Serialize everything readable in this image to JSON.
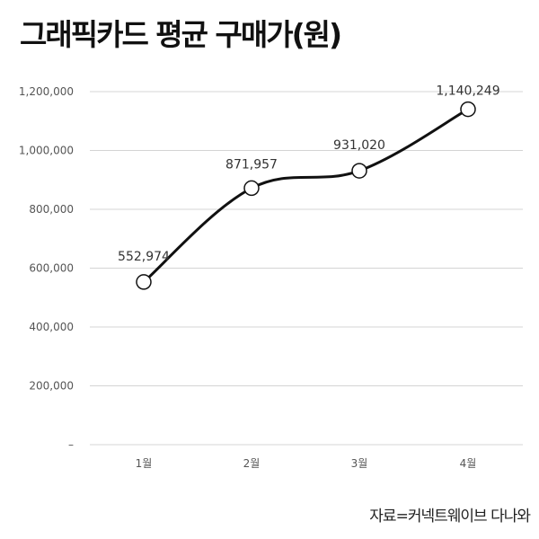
{
  "chart_data": {
    "type": "line",
    "title": "그래픽카드 평균 구매가(원)",
    "categories": [
      "1월",
      "2월",
      "3월",
      "4월"
    ],
    "series": [
      {
        "values": [
          552974,
          871957,
          931020,
          1140249
        ],
        "labels": [
          "552,974",
          "871,957",
          "931,020",
          "1,140,249"
        ]
      }
    ],
    "y_ticks": [
      0,
      200000,
      400000,
      600000,
      800000,
      1000000,
      1200000
    ],
    "y_tick_labels": [
      "–",
      "200,000",
      "400,000",
      "600,000",
      "800,000",
      "1,000,000",
      "1,200,000"
    ],
    "ylim": [
      0,
      1200000
    ],
    "grid": true,
    "smooth": true,
    "colors": {
      "line": "#111111",
      "marker_fill": "#ffffff",
      "grid": "#d4d4d4",
      "tick_text": "#555555",
      "label_text": "#333333"
    }
  },
  "source": "자료=커넥트웨이브 다나와"
}
